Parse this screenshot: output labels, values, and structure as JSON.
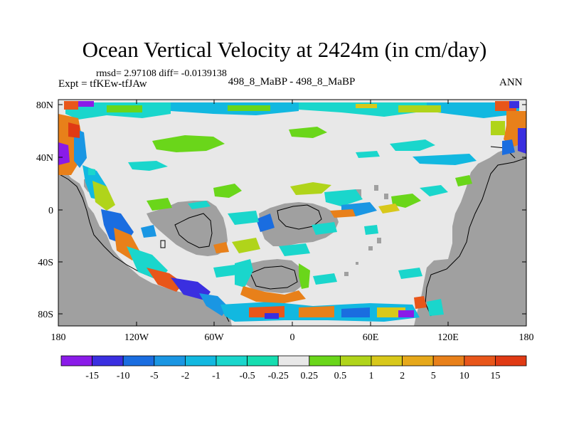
{
  "title": "Ocean Vertical Velocity at 2424m (in cm/day)",
  "stats": "rmsd= 2.97108 diff= -0.0139138",
  "experiment": "Expt = tfKEw-tfJAw",
  "case_label": "498_8_MaBP - 498_8_MaBP",
  "season": "ANN",
  "y_ticks": [
    "80N",
    "40N",
    "0",
    "40S",
    "80S"
  ],
  "x_ticks": [
    "180",
    "120W",
    "60W",
    "0",
    "60E",
    "120E",
    "180"
  ],
  "colorbar": {
    "labels": [
      "-15",
      "-10",
      "-5",
      "-2",
      "-1",
      "-0.5",
      "-0.25",
      "0.25",
      "0.5",
      "1",
      "2",
      "5",
      "10",
      "15"
    ],
    "colors": [
      "#8a1be8",
      "#3a2fe0",
      "#1a6de0",
      "#1a96e3",
      "#12b8e0",
      "#1ad6cc",
      "#16ddb0",
      "#e8e8e8",
      "#6ad61a",
      "#b0d41a",
      "#d8c81a",
      "#e6a81a",
      "#e8801a",
      "#e8561a",
      "#e03a14"
    ]
  },
  "colors": {
    "land": "#a0a0a0",
    "ocean_neutral": "#e8e8e8",
    "coast": "#000000"
  }
}
